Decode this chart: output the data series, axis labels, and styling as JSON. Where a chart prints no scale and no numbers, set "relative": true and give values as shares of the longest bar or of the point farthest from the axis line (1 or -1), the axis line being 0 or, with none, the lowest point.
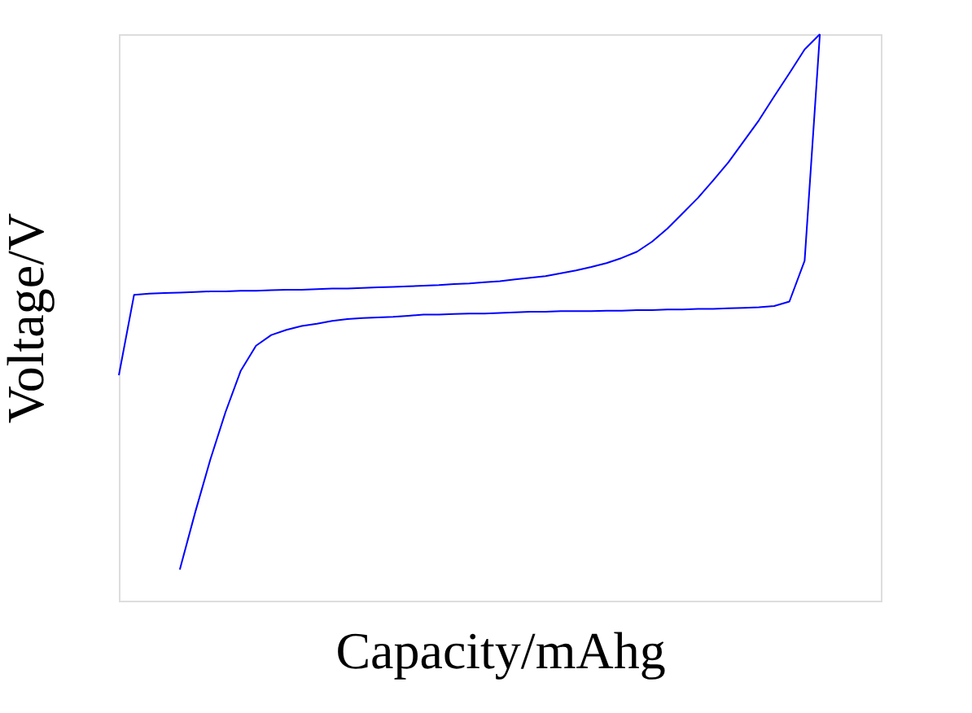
{
  "chart_data": {
    "type": "line",
    "xlabel": "Capacity/mAhg",
    "ylabel": "Voltage/V",
    "relative": true,
    "categories": [
      null,
      null,
      null,
      null,
      null,
      null,
      null,
      null,
      null,
      null,
      null,
      null,
      null,
      null,
      null,
      null,
      null,
      null,
      null,
      null,
      null,
      null,
      null,
      null,
      null,
      null,
      null,
      null,
      null,
      null,
      null,
      null,
      null,
      null,
      null,
      null,
      null,
      null,
      null,
      null,
      null,
      null,
      null,
      null,
      null,
      null,
      null,
      null,
      null,
      null,
      null
    ],
    "series": [
      {
        "color": "#0000ff",
        "values": [
          0.398,
          0.54,
          0.542,
          0.543,
          0.544,
          0.545,
          0.546,
          0.546,
          0.547,
          0.547,
          0.548,
          0.549,
          0.549,
          0.55,
          0.551,
          0.551,
          0.552,
          0.553,
          0.554,
          0.555,
          0.556,
          0.557,
          0.559,
          0.56,
          0.562,
          0.564,
          0.567,
          0.57,
          0.573,
          0.578,
          0.583,
          0.589,
          0.596,
          0.605,
          0.616,
          0.634,
          0.657,
          0.684,
          0.711,
          0.742,
          0.774,
          0.811,
          0.848,
          0.89,
          0.931,
          0.973,
          1.0,
          null,
          null,
          null,
          null
        ]
      },
      {
        "color": "#0000ff",
        "values": [
          null,
          null,
          null,
          null,
          0.055,
          0.155,
          0.249,
          0.333,
          0.406,
          0.45,
          0.469,
          0.478,
          0.485,
          0.489,
          0.494,
          0.497,
          0.499,
          0.5,
          0.501,
          0.503,
          0.505,
          0.505,
          0.506,
          0.507,
          0.507,
          0.508,
          0.509,
          0.51,
          0.51,
          0.511,
          0.511,
          0.511,
          0.512,
          0.512,
          0.513,
          0.513,
          0.514,
          0.514,
          0.515,
          0.515,
          0.516,
          0.517,
          0.518,
          0.52,
          0.528,
          0.6,
          1.0,
          null,
          null,
          null,
          null
        ]
      }
    ]
  }
}
